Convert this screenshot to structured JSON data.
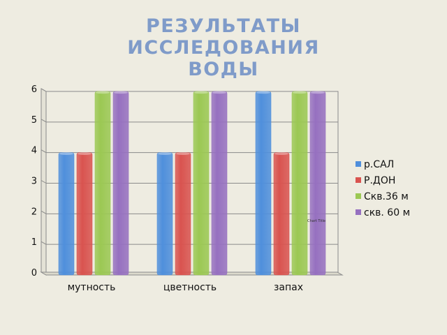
{
  "chart_data": {
    "type": "bar",
    "title_lines": [
      "РЕЗУЛЬТАТЫ",
      "ИССЛЕДОВАНИЯ",
      "ВОДЫ"
    ],
    "categories": [
      "мутность",
      "цветность",
      "запах"
    ],
    "series": [
      {
        "name": "р.САЛ",
        "values": [
          4,
          4,
          6
        ]
      },
      {
        "name": "Р.ДОН",
        "values": [
          4,
          4,
          4
        ]
      },
      {
        "name": "Скв.36 м",
        "values": [
          6,
          6,
          6
        ]
      },
      {
        "name": "скв. 60 м",
        "values": [
          6,
          6,
          6
        ]
      }
    ],
    "series_colors": [
      "#4f8fdc",
      "#d9534f",
      "#9bc853",
      "#9670c0"
    ],
    "ylim": [
      0,
      6
    ],
    "yticks": [
      0,
      1,
      2,
      3,
      4,
      5,
      6
    ],
    "grid": true,
    "legend_position": "right",
    "inner_label": "Chart Title"
  }
}
